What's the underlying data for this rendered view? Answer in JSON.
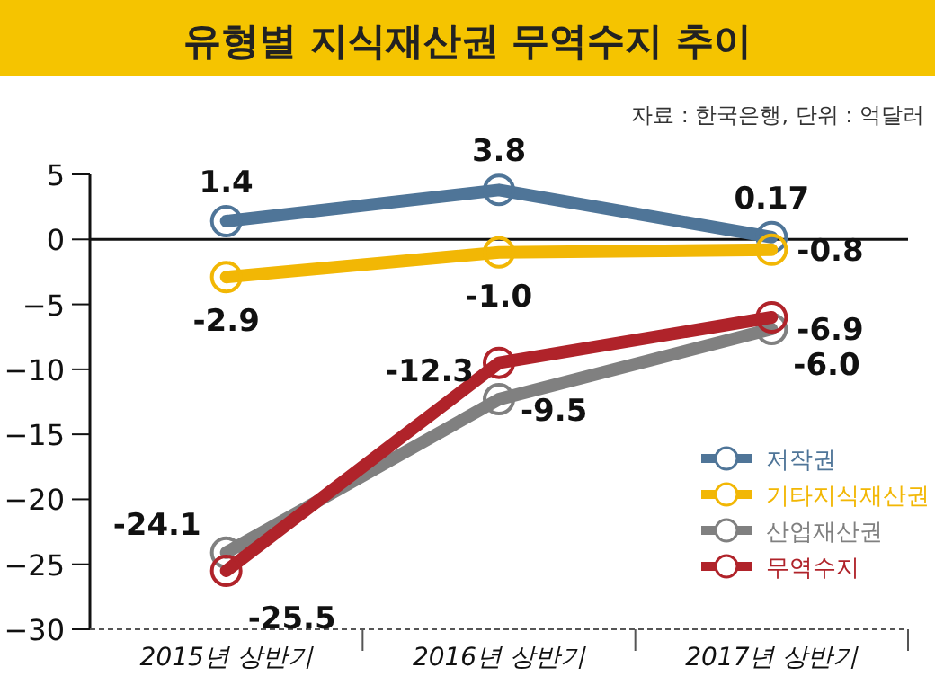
{
  "chart_data": {
    "type": "line",
    "title": "유형별 지식재산권 무역수지 추이",
    "annotations": [
      "자료 : 한국은행, 단위 : 억달러"
    ],
    "categories": [
      "2015년 상반기",
      "2016년 상반기",
      "2017년 상반기"
    ],
    "series": [
      {
        "name": "저작권",
        "color": "#4f7598",
        "values": [
          1.4,
          3.8,
          0.17
        ],
        "value_labels": [
          "1.4",
          "3.8",
          "0.17"
        ]
      },
      {
        "name": "기타지식재산권",
        "color": "#f2b705",
        "values": [
          -2.9,
          -1.0,
          -0.8
        ],
        "value_labels": [
          "-2.9",
          "-1.0",
          "-0.8"
        ]
      },
      {
        "name": "산업재산권",
        "color": "#808080",
        "values": [
          -24.1,
          -12.3,
          -6.9
        ],
        "value_labels": [
          "-24.1",
          "-12.3",
          "-6.9"
        ]
      },
      {
        "name": "무역수지",
        "color": "#b0232a",
        "values": [
          -25.5,
          -9.5,
          -6.0
        ],
        "value_labels": [
          "-25.5",
          "-9.5",
          "-6.0"
        ]
      }
    ],
    "ylim": [
      -30,
      5
    ],
    "yticks": [
      -30,
      -25,
      -20,
      -15,
      -10,
      -5,
      0,
      5
    ],
    "ref_lines": [
      {
        "axis": "y",
        "value": 0
      }
    ],
    "marker": "circle",
    "legend": "bottom right",
    "grid": false
  }
}
